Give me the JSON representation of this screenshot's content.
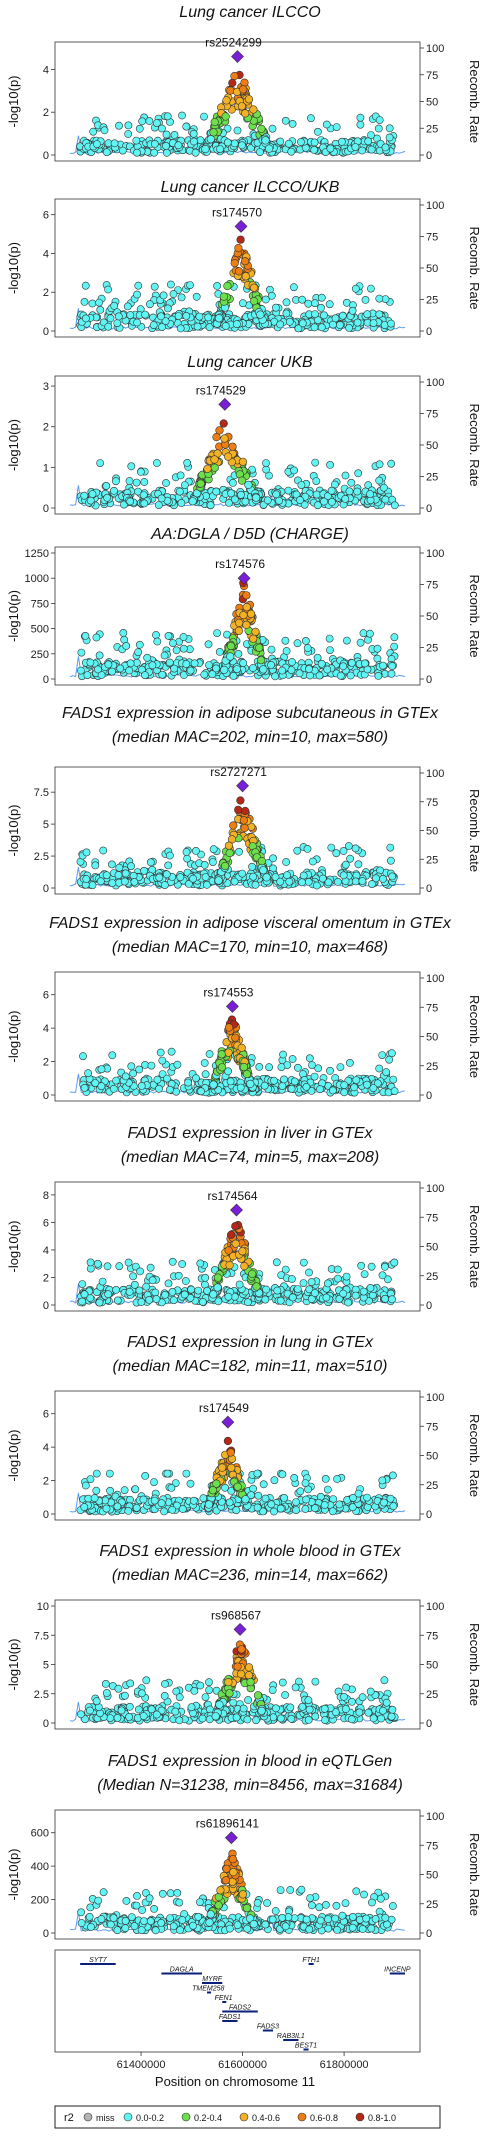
{
  "r2_colors": {
    "miss": "#b3b3b3",
    "0.0-0.2": "#5ff5f5",
    "0.2-0.4": "#6be04b",
    "0.4-0.6": "#f3b225",
    "0.6-0.8": "#ee7d13",
    "0.8-1.0": "#b42817",
    "lead": "#7a1fd6",
    "recomb": "#5b9cf0"
  },
  "shared_axes": {
    "y_left_label": "-log10(p)",
    "y_right_label": "Recomb. Rate",
    "recomb_ticks": [
      0,
      25,
      50,
      75,
      100
    ],
    "x_label": "Position on chromosome 11",
    "x_ticks": [
      61400000,
      61600000,
      61800000
    ]
  },
  "chart_data": [
    {
      "type": "scatter",
      "title_lines": [
        "Lung cancer ILCCO"
      ],
      "lead_snp": "rs2524299",
      "lead_pos": 61590000,
      "lead_value": 4.6,
      "ylim": [
        0,
        5
      ],
      "yticks": [
        0,
        2,
        4
      ],
      "peak_height": 4.2,
      "peak_width": 40000
    },
    {
      "type": "scatter",
      "title_lines": [
        "Lung cancer ILCCO/UKB"
      ],
      "lead_snp": "rs174570",
      "lead_pos": 61597000,
      "lead_value": 5.4,
      "ylim": [
        0,
        6.5
      ],
      "yticks": [
        0,
        2,
        4,
        6
      ],
      "peak_height": 5.0,
      "peak_width": 30000
    },
    {
      "type": "scatter",
      "title_lines": [
        "Lung cancer UKB"
      ],
      "lead_snp": "rs174529",
      "lead_pos": 61565000,
      "lead_value": 2.55,
      "ylim": [
        0,
        3.1
      ],
      "yticks": [
        0,
        1,
        2,
        3
      ],
      "peak_height": 2.3,
      "peak_width": 40000
    },
    {
      "type": "scatter",
      "title_lines": [
        "AA:DGLA / D5D (CHARGE)"
      ],
      "lead_snp": "rs174576",
      "lead_pos": 61603000,
      "lead_value": 1000,
      "ylim": [
        0,
        1250
      ],
      "yticks": [
        0,
        250,
        500,
        750,
        1000,
        1250
      ],
      "peak_height": 1000,
      "peak_width": 25000
    },
    {
      "type": "scatter",
      "title_lines": [
        "FADS1 expression in adipose subcutaneous in GTEx",
        "(median MAC=202, min=10, max=580)"
      ],
      "lead_snp": "rs2727271",
      "lead_pos": 61600000,
      "lead_value": 8.0,
      "ylim": [
        0,
        9
      ],
      "yticks": [
        0,
        2.5,
        5,
        7.5
      ],
      "peak_height": 7.5,
      "peak_width": 30000
    },
    {
      "type": "scatter",
      "title_lines": [
        "FADS1 expression in adipose visceral omentum in GTEx",
        "(median MAC=170, min=10, max=468)"
      ],
      "lead_snp": "rs174553",
      "lead_pos": 61580000,
      "lead_value": 5.3,
      "ylim": [
        0,
        7
      ],
      "yticks": [
        0,
        2,
        4,
        6
      ],
      "peak_height": 5.0,
      "peak_width": 25000
    },
    {
      "type": "scatter",
      "title_lines": [
        "FADS1 expression in liver in GTEx",
        "(median MAC=74, min=5, max=208)"
      ],
      "lead_snp": "rs174564",
      "lead_pos": 61588000,
      "lead_value": 6.9,
      "ylim": [
        0,
        8.5
      ],
      "yticks": [
        0,
        2,
        4,
        6,
        8
      ],
      "peak_height": 6.5,
      "peak_width": 30000
    },
    {
      "type": "scatter",
      "title_lines": [
        "FADS1 expression in lung in GTEx",
        "(median MAC=182, min=11, max=510)"
      ],
      "lead_snp": "rs174549",
      "lead_pos": 61571000,
      "lead_value": 5.5,
      "ylim": [
        0,
        7
      ],
      "yticks": [
        0,
        2,
        4,
        6
      ],
      "peak_height": 4.6,
      "peak_width": 25000
    },
    {
      "type": "scatter",
      "title_lines": [
        "FADS1 expression in whole blood in GTEx",
        "(median MAC=236, min=14, max=662)"
      ],
      "lead_snp": "rs968567",
      "lead_pos": 61595000,
      "lead_value": 8.0,
      "ylim": [
        0,
        10
      ],
      "yticks": [
        0,
        2.5,
        5,
        7.5,
        10
      ],
      "peak_height": 7.5,
      "peak_width": 30000
    },
    {
      "type": "scatter",
      "title_lines": [
        "FADS1 expression in blood in eQTLGen",
        "(Median N=31238, min=8456, max=31684)"
      ],
      "lead_snp": "rs61896141",
      "lead_pos": 61578000,
      "lead_value": 570,
      "ylim": [
        0,
        700
      ],
      "yticks": [
        0,
        200,
        400,
        600
      ],
      "peak_height": 500,
      "peak_width": 30000
    }
  ],
  "genes": [
    {
      "name": "SYT7",
      "start": 61280000,
      "end": 61350000,
      "row": 0
    },
    {
      "name": "FTH1",
      "start": 61730000,
      "end": 61740000,
      "row": 0
    },
    {
      "name": "INCENP",
      "start": 61890000,
      "end": 61920000,
      "row": 1
    },
    {
      "name": "DAGLA",
      "start": 61440000,
      "end": 61520000,
      "row": 1
    },
    {
      "name": "MYRF",
      "start": 61520000,
      "end": 61560000,
      "row": 2
    },
    {
      "name": "TMEM258",
      "start": 61530000,
      "end": 61535000,
      "row": 3
    },
    {
      "name": "FEN1",
      "start": 61560000,
      "end": 61565000,
      "row": 4
    },
    {
      "name": "FADS2",
      "start": 61560000,
      "end": 61630000,
      "row": 5
    },
    {
      "name": "FADS1",
      "start": 61560000,
      "end": 61590000,
      "row": 6
    },
    {
      "name": "FADS3",
      "start": 61640000,
      "end": 61660000,
      "row": 7
    },
    {
      "name": "RAB3IL1",
      "start": 61680000,
      "end": 61710000,
      "row": 8
    },
    {
      "name": "BEST1",
      "start": 61720000,
      "end": 61730000,
      "row": 9
    }
  ],
  "legend": {
    "title": "r2",
    "items": [
      {
        "key": "miss",
        "label": "miss"
      },
      {
        "key": "0.0-0.2",
        "label": "0.0-0.2"
      },
      {
        "key": "0.2-0.4",
        "label": "0.2-0.4"
      },
      {
        "key": "0.4-0.6",
        "label": "0.4-0.6"
      },
      {
        "key": "0.6-0.8",
        "label": "0.6-0.8"
      },
      {
        "key": "0.8-1.0",
        "label": "0.8-1.0"
      }
    ]
  }
}
